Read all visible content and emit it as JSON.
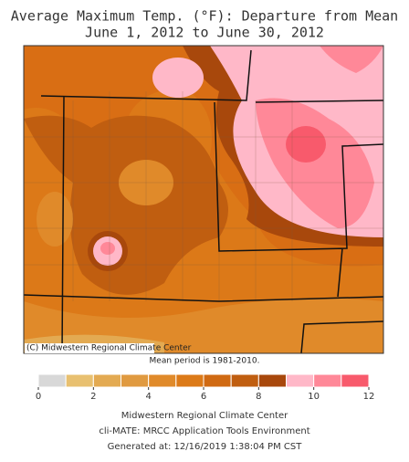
{
  "header": {
    "title": [
      "Average Maximum Temp. (°F): Departure from Mean",
      "June 1, 2012 to June 30, 2012"
    ]
  },
  "map": {
    "credit": "(C) Midwestern Regional Climate Center",
    "note": "Mean period is 1981-2010."
  },
  "legend": {
    "bins": [
      0,
      1,
      2,
      3,
      4,
      5,
      6,
      7,
      8,
      9,
      10,
      11,
      12
    ],
    "colors": [
      "#d8d8d8",
      "#e8c070",
      "#e3aa52",
      "#e09a40",
      "#e08a2a",
      "#dc7a18",
      "#d06a12",
      "#c05e10",
      "#a8480c",
      "#ffb8c8",
      "#ff8898",
      "#f85a6c"
    ],
    "ticks": [
      0,
      2,
      4,
      6,
      8,
      10,
      12
    ]
  },
  "footer": [
    "Midwestern Regional Climate Center",
    "cli-MATE: MRCC Application Tools Environment",
    "Generated at: 12/16/2019 1:38:04 PM CST"
  ]
}
